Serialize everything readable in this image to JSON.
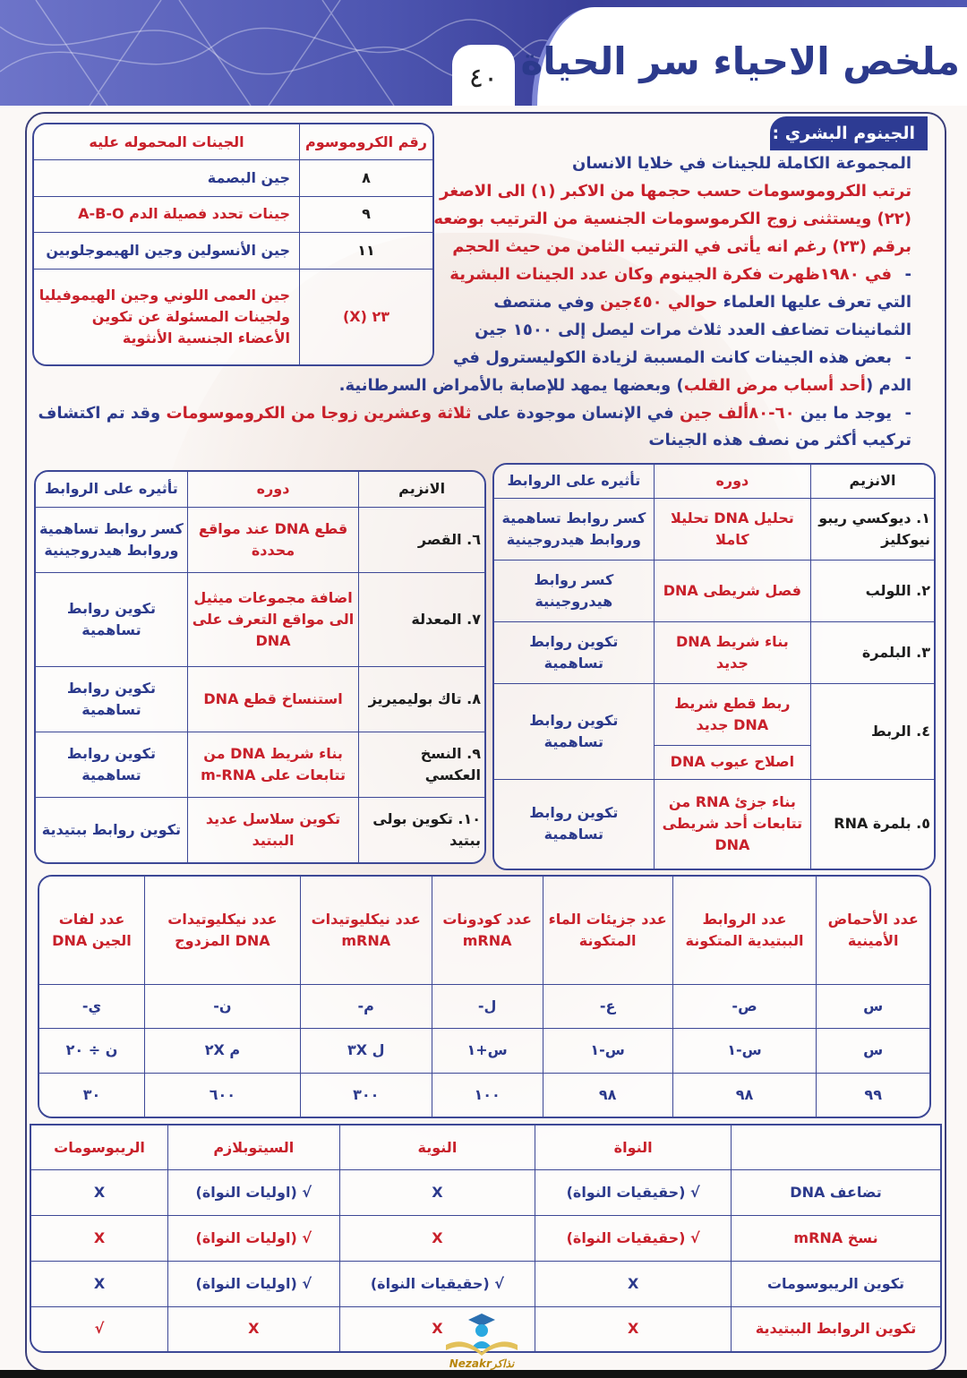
{
  "header": {
    "title": "ملخص الاحياء سر الحياة",
    "page_number": "٤٠"
  },
  "genome": {
    "title": "الجينوم البشري :",
    "lines": [
      {
        "bullet": false,
        "segments": [
          [
            "المجموعة الكاملة للجينات في خلايا الانسان",
            "b"
          ]
        ]
      },
      {
        "bullet": false,
        "segments": [
          [
            "ترتب الكروموسومات حسب حجمها من الاكبر (١) الى الاصغر",
            "r"
          ]
        ]
      },
      {
        "bullet": false,
        "segments": [
          [
            "(٢٢) ويستثنى زوج الكرموسومات الجنسية من الترتيب بوضعه",
            "r"
          ]
        ]
      },
      {
        "bullet": false,
        "segments": [
          [
            "برقم (٢٣) رغم انه يأتى في الترتيب الثامن من حيث الحجم",
            "r"
          ]
        ]
      },
      {
        "bullet": true,
        "segments": [
          [
            "في ١٩٨٠ظهرت فكرة الجينوم وكان عدد الجينات البشرية",
            "r"
          ]
        ]
      },
      {
        "bullet": false,
        "segments": [
          [
            "التي تعرف عليها العلماء ",
            "b"
          ],
          [
            "حوالي ٤٥٠جين",
            "r"
          ],
          [
            " وفي منتصف",
            "b"
          ]
        ]
      },
      {
        "bullet": false,
        "segments": [
          [
            "الثمانينات تضاعف العدد ثلاث مرات ليصل إلى ١٥٠٠ جين",
            "b"
          ]
        ]
      },
      {
        "bullet": true,
        "segments": [
          [
            "بعض هذه الجينات كانت المسببة لزيادة الكوليسترول في",
            "b"
          ]
        ]
      },
      {
        "bullet": false,
        "segments": [
          [
            "الدم (",
            "b"
          ],
          [
            "أحد أسباب مرض القلب",
            "r"
          ],
          [
            ") وبعضها يمهد للإصابة بالأمراض السرطانية.",
            "b"
          ]
        ]
      },
      {
        "bullet": true,
        "segments": [
          [
            "يوجد ما بين ",
            "b"
          ],
          [
            "٦٠-٨٠ألف جين",
            "r"
          ],
          [
            " في الإنسان موجودة على ",
            "b"
          ],
          [
            "ثلاثة وعشرين زوجا من الكروموسومات",
            "r"
          ],
          [
            " وقد تم اكتشاف",
            "b"
          ]
        ]
      },
      {
        "bullet": false,
        "segments": [
          [
            "تركيب أكثر من نصف هذه الجينات",
            "b"
          ]
        ]
      }
    ]
  },
  "chromosome_table": {
    "headers": [
      "رقم الكروموسوم",
      "الجينات المحموله عليه"
    ],
    "rows": [
      [
        [
          "٨",
          "k"
        ],
        [
          "جين البصمة",
          "b"
        ]
      ],
      [
        [
          "٩",
          "k"
        ],
        [
          "جينات تحدد فصيلة الدم A-B-O",
          "r"
        ]
      ],
      [
        [
          "١١",
          "k"
        ],
        [
          "جين الأنسولين وجين الهيموجلوبين",
          "b"
        ]
      ],
      [
        [
          "٢٣ (X)",
          "r"
        ],
        [
          "جين العمى اللوني وجين الهيموفيليا ولجينات المسئولة عن تكوين الأعضاء الجنسية الأنثوية",
          "r"
        ]
      ]
    ]
  },
  "enzymes_right": {
    "headers": [
      "الانزيم",
      "دوره",
      "تأثيره على الروابط"
    ],
    "rows": [
      [
        [
          "١. ديوكسي ريبو نيوكليز",
          "k"
        ],
        [
          "تحليل DNA تحليلا كاملا",
          "r"
        ],
        [
          "كسر روابط تساهمية وروابط هيدروجينية",
          "b"
        ]
      ],
      [
        [
          "٢. اللولب",
          "k"
        ],
        [
          "فصل شريطى DNA",
          "r"
        ],
        [
          "كسر روابط هيدروجينية",
          "b"
        ]
      ],
      [
        [
          "٣. البلمرة",
          "k"
        ],
        [
          "بناء شريط DNA جديد",
          "r"
        ],
        [
          "تكوين روابط تساهمية",
          "b"
        ]
      ],
      [
        [
          "٤. الربط",
          "k"
        ],
        [
          "ربط قطع شريط DNA جديد",
          "r"
        ],
        [
          "تكوين روابط تساهمية",
          "b"
        ]
      ],
      [
        [
          "اصلاح عيوب DNA",
          "r"
        ]
      ],
      [
        [
          "٥. بلمرة RNA",
          "k"
        ],
        [
          "بناء جزئ RNA من تتابعات أحد شريطى DNA",
          "r"
        ],
        [
          "تكوين روابط تساهمية",
          "b"
        ]
      ]
    ]
  },
  "enzymes_left": {
    "headers": [
      "الانزيم",
      "دوره",
      "تأثيره على الروابط"
    ],
    "rows": [
      [
        [
          "٦. القصر",
          "k"
        ],
        [
          "قطع DNA عند مواقع محددة",
          "r"
        ],
        [
          "كسر روابط تساهمية وروابط هيدروجينية",
          "b"
        ]
      ],
      [
        [
          "٧. المعدلة",
          "k"
        ],
        [
          "اضافة مجموعات ميثيل الى مواقع التعرف على DNA",
          "r"
        ],
        [
          "تكوين روابط تساهمية",
          "b"
        ]
      ],
      [
        [
          "٨. تاك بوليميريز",
          "k"
        ],
        [
          "استنساخ قطع DNA",
          "r"
        ],
        [
          "تكوين روابط تساهمية",
          "b"
        ]
      ],
      [
        [
          "٩. النسخ العكسي",
          "k"
        ],
        [
          "بناء شريط DNA من تتابعات على m-RNA",
          "r"
        ],
        [
          "تكوين روابط تساهمية",
          "b"
        ]
      ],
      [
        [
          "١٠. تكوين بولى ببتيد",
          "k"
        ],
        [
          "تكوين سلاسل عديد الببتيد",
          "r"
        ],
        [
          "تكوين روابط ببتيدية",
          "b"
        ]
      ]
    ]
  },
  "counts_table": {
    "headers": [
      "عدد الأحماض الأمينية",
      "عدد الروابط الببتيدية المتكونة",
      "عدد جزيئات الماء المتكونة",
      "عدد كودونات mRNA",
      "عدد نيكليوتيدات mRNA",
      "عدد نيكليوتيدات DNA المزدوج",
      "عدد لفات الجين DNA"
    ],
    "rows": [
      [
        "س",
        "ص-",
        "ع-",
        "ل-",
        "م-",
        "ن-",
        "ي-"
      ],
      [
        "س",
        "س-١",
        "س-١",
        "س+١",
        "ل ٣X",
        "م ٢X",
        "ن ÷ ٢٠"
      ],
      [
        "٩٩",
        "٩٨",
        "٩٨",
        "١٠٠",
        "٣٠٠",
        "٦٠٠",
        "٣٠"
      ]
    ]
  },
  "location_table": {
    "headers": [
      "",
      "النواة",
      "النوية",
      "السيتوبلازم",
      "الريبوسومات"
    ],
    "rows": [
      {
        "tone": "b",
        "cells": [
          "تضاعف DNA",
          "√ (حقيقيات النواة)",
          "X",
          "√ (اوليات النواة)",
          "X"
        ]
      },
      {
        "tone": "r",
        "cells": [
          "نسخ mRNA",
          "√ (حقيقيات النواة)",
          "X",
          "√ (اوليات النواة)",
          "X"
        ]
      },
      {
        "tone": "b",
        "cells": [
          "تكوين الريبوسومات",
          "X",
          "√ (حقيقيات النواة)",
          "√ (اوليات النواة)",
          "X"
        ]
      },
      {
        "tone": "r",
        "cells": [
          "تكوين الروابط الببتيدية",
          "X",
          "X",
          "X",
          "√"
        ]
      }
    ]
  },
  "logo": {
    "text": "Nezakrنذاكر",
    "icon": "graduate-book-icon"
  },
  "colors": {
    "blue": "#2c3a8c",
    "red": "#c8202a",
    "badge": "#2d3b93"
  }
}
